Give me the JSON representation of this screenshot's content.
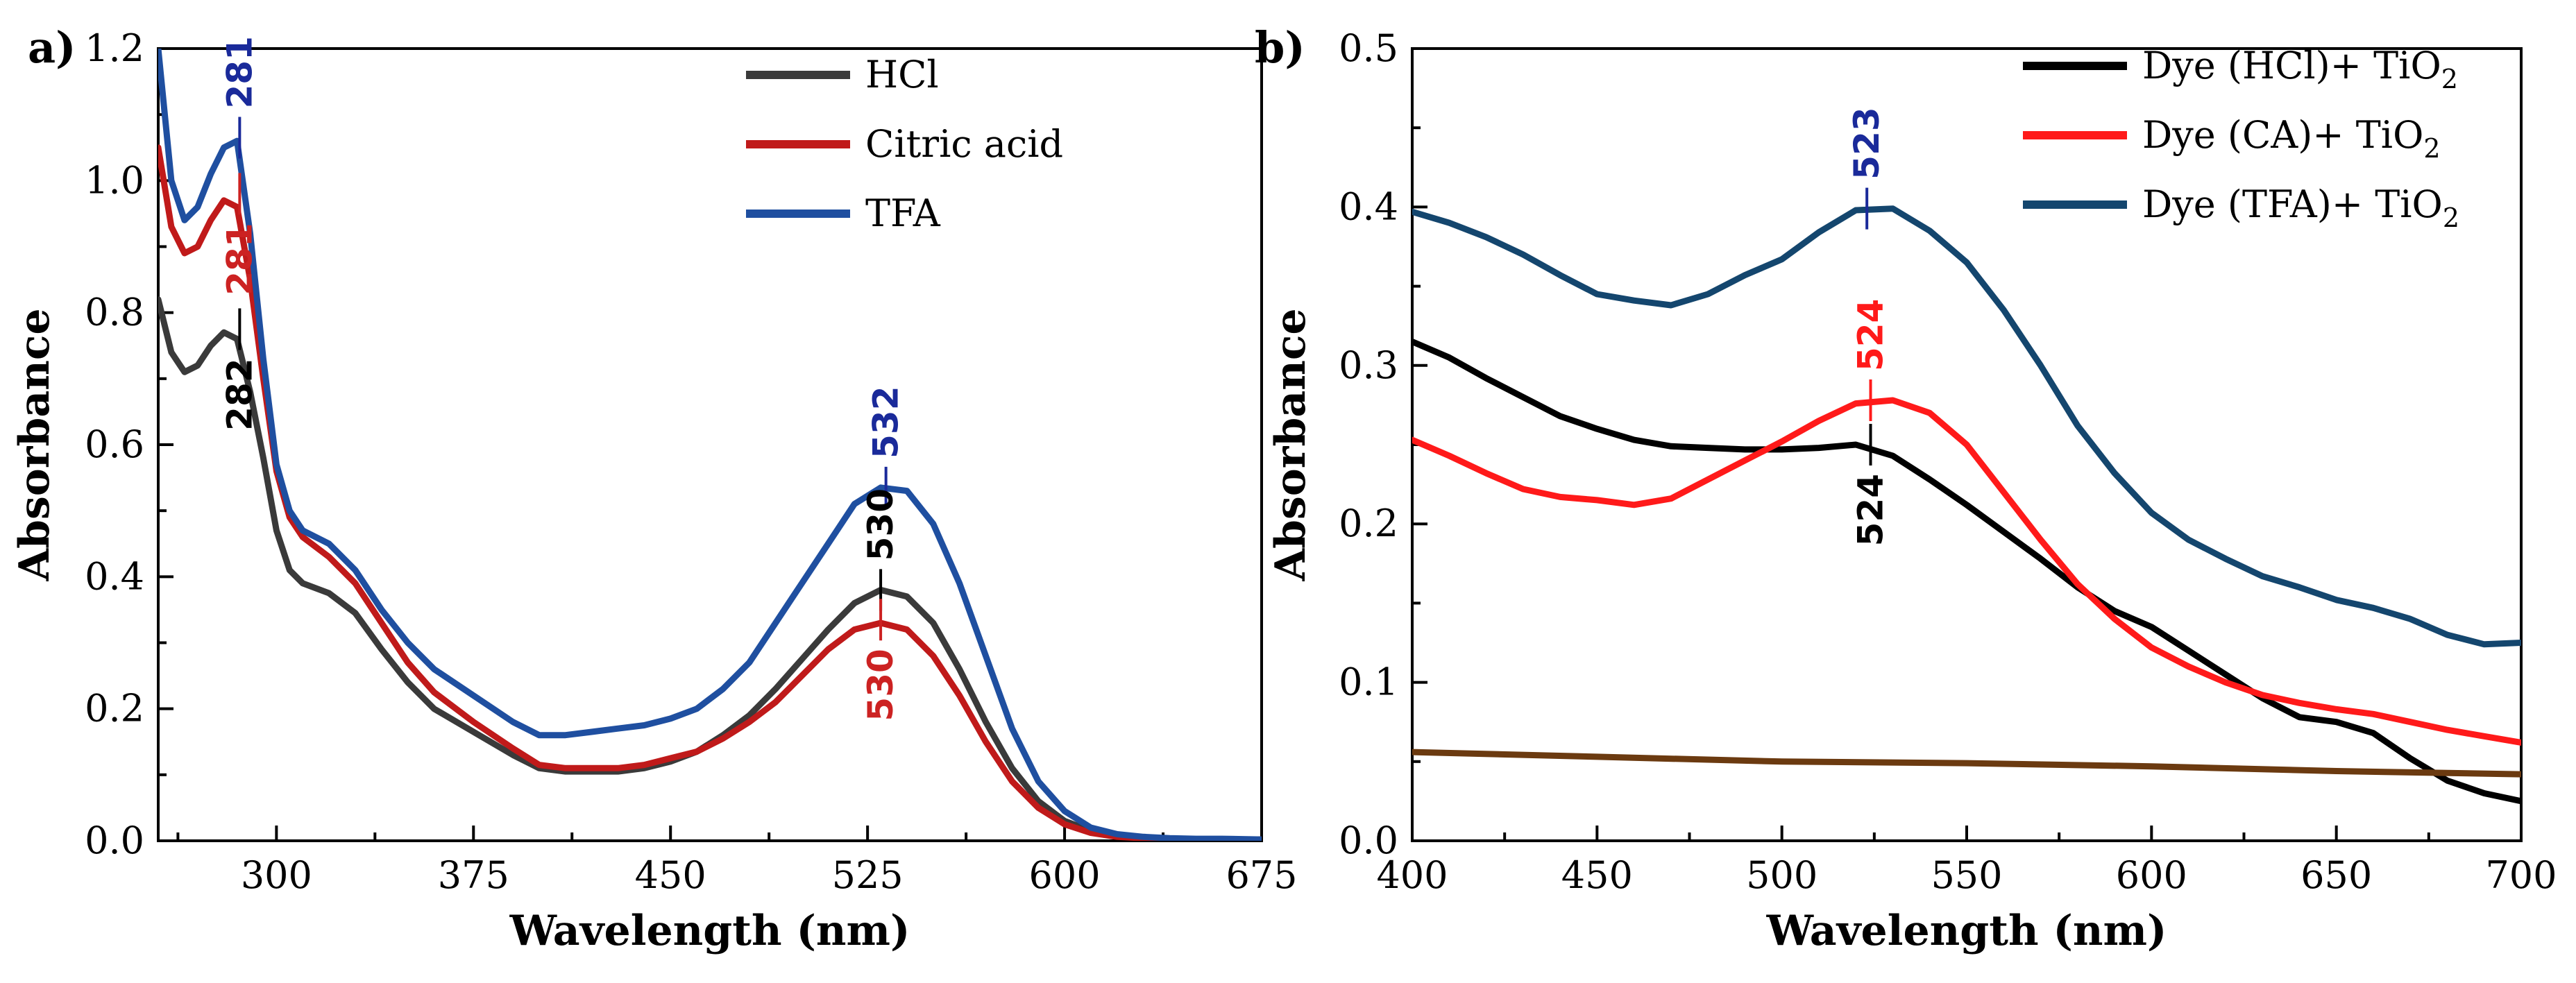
{
  "chart_data": [
    {
      "type": "line",
      "panel_label": "a)",
      "xlabel": "Wavelength (nm)",
      "ylabel": "Absorbance",
      "xlim": [
        255,
        675
      ],
      "ylim": [
        0.0,
        1.2
      ],
      "xticks": [
        300,
        375,
        450,
        525,
        600,
        675
      ],
      "xtick_labels": [
        "300",
        "375",
        "450",
        "525",
        "600",
        "675"
      ],
      "yticks": [
        0.0,
        0.2,
        0.4,
        0.6,
        0.8,
        1.0,
        1.2
      ],
      "ytick_labels": [
        "0.0",
        "0.2",
        "0.4",
        "0.6",
        "0.8",
        "1.0",
        "1.2"
      ],
      "legend_position": "top-right",
      "series": [
        {
          "name": "HCl",
          "color": "#3a3a3a",
          "x": [
            255,
            260,
            265,
            270,
            275,
            280,
            285,
            290,
            295,
            300,
            305,
            310,
            320,
            330,
            340,
            350,
            360,
            375,
            390,
            400,
            410,
            420,
            430,
            440,
            450,
            460,
            470,
            480,
            490,
            500,
            510,
            520,
            530,
            540,
            550,
            560,
            570,
            580,
            590,
            600,
            610,
            620,
            630,
            640,
            650,
            660,
            675
          ],
          "y": [
            0.82,
            0.74,
            0.71,
            0.72,
            0.75,
            0.77,
            0.76,
            0.68,
            0.58,
            0.47,
            0.41,
            0.39,
            0.375,
            0.345,
            0.29,
            0.24,
            0.2,
            0.165,
            0.13,
            0.11,
            0.105,
            0.105,
            0.105,
            0.11,
            0.12,
            0.135,
            0.16,
            0.19,
            0.23,
            0.275,
            0.32,
            0.36,
            0.38,
            0.37,
            0.33,
            0.26,
            0.18,
            0.11,
            0.06,
            0.03,
            0.015,
            0.008,
            0.005,
            0.003,
            0.002,
            0.002,
            0.002
          ]
        },
        {
          "name": "Citric acid",
          "color": "#c01a1a",
          "x": [
            255,
            260,
            265,
            270,
            275,
            280,
            285,
            290,
            295,
            300,
            305,
            310,
            320,
            330,
            340,
            350,
            360,
            375,
            390,
            400,
            410,
            420,
            430,
            440,
            450,
            460,
            470,
            480,
            490,
            500,
            510,
            520,
            530,
            540,
            550,
            560,
            570,
            580,
            590,
            600,
            610,
            620,
            630,
            640,
            650,
            660,
            675
          ],
          "y": [
            1.05,
            0.93,
            0.89,
            0.9,
            0.94,
            0.97,
            0.96,
            0.85,
            0.7,
            0.56,
            0.49,
            0.46,
            0.43,
            0.39,
            0.33,
            0.27,
            0.225,
            0.18,
            0.14,
            0.115,
            0.11,
            0.11,
            0.11,
            0.115,
            0.125,
            0.135,
            0.155,
            0.18,
            0.21,
            0.25,
            0.29,
            0.32,
            0.33,
            0.32,
            0.28,
            0.22,
            0.15,
            0.09,
            0.05,
            0.025,
            0.012,
            0.006,
            0.004,
            0.003,
            0.002,
            0.002,
            0.002
          ]
        },
        {
          "name": "TFA",
          "color": "#1f4fa0",
          "x": [
            255,
            260,
            265,
            270,
            275,
            280,
            285,
            290,
            295,
            300,
            305,
            310,
            320,
            330,
            340,
            350,
            360,
            375,
            390,
            400,
            410,
            420,
            430,
            440,
            450,
            460,
            470,
            480,
            490,
            500,
            510,
            520,
            530,
            540,
            550,
            560,
            570,
            580,
            590,
            600,
            610,
            620,
            630,
            640,
            650,
            660,
            675
          ],
          "y": [
            1.2,
            1.0,
            0.94,
            0.96,
            1.01,
            1.05,
            1.06,
            0.92,
            0.73,
            0.57,
            0.5,
            0.47,
            0.45,
            0.41,
            0.35,
            0.3,
            0.26,
            0.22,
            0.18,
            0.16,
            0.16,
            0.165,
            0.17,
            0.175,
            0.185,
            0.2,
            0.23,
            0.27,
            0.33,
            0.39,
            0.45,
            0.51,
            0.535,
            0.53,
            0.48,
            0.39,
            0.28,
            0.17,
            0.09,
            0.045,
            0.02,
            0.01,
            0.006,
            0.004,
            0.003,
            0.003,
            0.002
          ]
        }
      ],
      "annotations": [
        {
          "text": "281",
          "x": 286,
          "y": 1.065,
          "color": "#1a2a9a",
          "placement": "above"
        },
        {
          "text": "281",
          "x": 286,
          "y": 0.98,
          "color": "#cc2222",
          "placement": "below"
        },
        {
          "text": "282",
          "x": 286,
          "y": 0.775,
          "color": "#000000",
          "placement": "below"
        },
        {
          "text": "532",
          "x": 532,
          "y": 0.535,
          "color": "#1a2a9a",
          "placement": "above"
        },
        {
          "text": "530",
          "x": 530,
          "y": 0.38,
          "color": "#000000",
          "placement": "above"
        },
        {
          "text": "530",
          "x": 530,
          "y": 0.335,
          "color": "#cc2222",
          "placement": "below"
        }
      ]
    },
    {
      "type": "line",
      "panel_label": "b)",
      "xlabel": "Wavelength (nm)",
      "ylabel": "Absorbance",
      "xlim": [
        400,
        700
      ],
      "ylim": [
        0.0,
        0.5
      ],
      "xticks": [
        400,
        450,
        500,
        550,
        600,
        650,
        700
      ],
      "xtick_labels": [
        "400",
        "450",
        "500",
        "550",
        "600",
        "650",
        "700"
      ],
      "yticks": [
        0.0,
        0.1,
        0.2,
        0.3,
        0.4,
        0.5
      ],
      "ytick_labels": [
        "0.0",
        "0.1",
        "0.2",
        "0.3",
        "0.4",
        "0.5"
      ],
      "legend_position": "top-right",
      "series": [
        {
          "name": "Dye (HCl)+ TiO",
          "subscript": "2",
          "color": "#000000",
          "x": [
            400,
            410,
            420,
            430,
            440,
            450,
            460,
            470,
            480,
            490,
            500,
            510,
            520,
            530,
            540,
            550,
            560,
            570,
            580,
            590,
            600,
            610,
            620,
            630,
            640,
            650,
            660,
            670,
            680,
            690,
            700
          ],
          "y": [
            0.315,
            0.305,
            0.292,
            0.28,
            0.268,
            0.26,
            0.253,
            0.249,
            0.248,
            0.247,
            0.247,
            0.248,
            0.25,
            0.243,
            0.228,
            0.212,
            0.195,
            0.178,
            0.16,
            0.145,
            0.135,
            0.12,
            0.105,
            0.09,
            0.078,
            0.075,
            0.068,
            0.052,
            0.038,
            0.03,
            0.025
          ]
        },
        {
          "name": "Dye (CA)+ TiO",
          "subscript": "2",
          "color": "#ff1a1a",
          "x": [
            400,
            410,
            420,
            430,
            440,
            450,
            460,
            470,
            480,
            490,
            500,
            510,
            520,
            530,
            540,
            550,
            560,
            570,
            580,
            590,
            600,
            610,
            620,
            630,
            640,
            650,
            660,
            670,
            680,
            690,
            700
          ],
          "y": [
            0.253,
            0.243,
            0.232,
            0.222,
            0.217,
            0.215,
            0.212,
            0.216,
            0.228,
            0.24,
            0.252,
            0.265,
            0.276,
            0.278,
            0.27,
            0.25,
            0.22,
            0.19,
            0.162,
            0.14,
            0.122,
            0.11,
            0.1,
            0.092,
            0.087,
            0.083,
            0.08,
            0.075,
            0.07,
            0.066,
            0.062
          ]
        },
        {
          "name": "Dye (TFA)+ TiO",
          "subscript": "2",
          "color": "#14466e",
          "x": [
            400,
            410,
            420,
            430,
            440,
            450,
            460,
            470,
            480,
            490,
            500,
            510,
            520,
            530,
            540,
            550,
            560,
            570,
            580,
            590,
            600,
            610,
            620,
            630,
            640,
            650,
            660,
            670,
            680,
            690,
            700
          ],
          "y": [
            0.397,
            0.39,
            0.381,
            0.37,
            0.357,
            0.345,
            0.341,
            0.338,
            0.345,
            0.357,
            0.367,
            0.384,
            0.398,
            0.399,
            0.385,
            0.365,
            0.335,
            0.3,
            0.262,
            0.232,
            0.207,
            0.19,
            0.178,
            0.167,
            0.16,
            0.152,
            0.147,
            0.14,
            0.13,
            0.124,
            0.125
          ]
        },
        {
          "name": "",
          "color": "#6b3a10",
          "x": [
            400,
            450,
            500,
            550,
            600,
            650,
            700
          ],
          "y": [
            0.056,
            0.053,
            0.05,
            0.049,
            0.047,
            0.044,
            0.042
          ]
        }
      ],
      "annotations": [
        {
          "text": "523",
          "x": 523,
          "y": 0.399,
          "color": "#1a2a9a",
          "placement": "above"
        },
        {
          "text": "524",
          "x": 524,
          "y": 0.278,
          "color": "#ff1a1a",
          "placement": "above"
        },
        {
          "text": "524",
          "x": 524,
          "y": 0.25,
          "color": "#000000",
          "placement": "below"
        }
      ]
    }
  ]
}
